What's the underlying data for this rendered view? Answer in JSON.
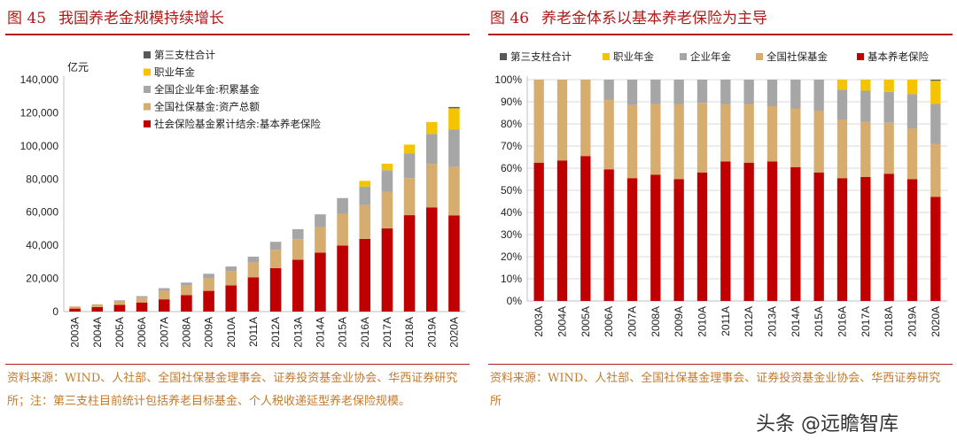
{
  "colors": {
    "basic": "#c00000",
    "social": "#d6ad6f",
    "enterprise": "#a6a6a6",
    "occupational": "#f5c400",
    "third": "#595959",
    "title": "#b01a17",
    "source": "#c47a2e"
  },
  "left": {
    "fig_num": "图 45",
    "title": "我国养老金规模持续增长",
    "source_text": "资料来源：WIND、人社部、全国社保基金理事会、证券投资基金业协会、华西证券研究所；注：第三支柱目前统计包括养老目标基金、个人税收递延型养老保险规模。"
  },
  "right": {
    "fig_num": "图 46",
    "title": "养老金体系以基本养老保险为主导",
    "source_text": "资料来源：WIND、人社部、全国社保基金理事会、证券投资基金业协会、华西证券研究所"
  },
  "watermark": "头条 @远瞻智库",
  "chart_data": [
    {
      "type": "bar",
      "stacked": true,
      "title": "我国养老金规模持续增长",
      "ylabel": "亿元",
      "ylim": [
        0,
        140000
      ],
      "yticks": [
        "0",
        "20,000",
        "40,000",
        "60,000",
        "80,000",
        "100,000",
        "120,000",
        "140,000"
      ],
      "legend_position": "top-left",
      "categories": [
        "2003A",
        "2004A",
        "2005A",
        "2006A",
        "2007A",
        "2008A",
        "2009A",
        "2010A",
        "2011A",
        "2012A",
        "2013A",
        "2014A",
        "2015A",
        "2016A",
        "2017A",
        "2018A",
        "2019A",
        "2020A"
      ],
      "series": [
        {
          "name": "社会保险基金累计结余:基本养老保险",
          "color": "#c00000",
          "values": [
            1800,
            2700,
            4000,
            5500,
            7400,
            9900,
            12500,
            15800,
            20700,
            26200,
            31300,
            35600,
            39900,
            43900,
            50200,
            58200,
            62900,
            58100
          ]
        },
        {
          "name": "全国社保基金:资产总额",
          "color": "#d6ad6f",
          "values": [
            1300,
            1700,
            2100,
            2900,
            5200,
            5700,
            7800,
            8600,
            8900,
            11100,
            12400,
            15400,
            19100,
            20400,
            22200,
            22400,
            26300,
            29200
          ]
        },
        {
          "name": "全国企业年金:积累基金",
          "color": "#a6a6a6",
          "values": [
            0,
            0,
            680,
            910,
            1520,
            1910,
            2530,
            2810,
            3570,
            4820,
            6040,
            7690,
            9530,
            11100,
            12900,
            14800,
            18000,
            22500
          ]
        },
        {
          "name": "职业年金",
          "color": "#f5c400",
          "values": [
            0,
            0,
            0,
            0,
            0,
            0,
            0,
            0,
            0,
            0,
            0,
            0,
            0,
            3500,
            4000,
            5400,
            7200,
            12900
          ]
        },
        {
          "name": "第三支柱合计",
          "color": "#595959",
          "values": [
            0,
            0,
            0,
            0,
            0,
            0,
            0,
            0,
            0,
            0,
            0,
            0,
            0,
            0,
            0,
            0,
            0,
            800
          ]
        }
      ],
      "legend_order": [
        "第三支柱合计",
        "职业年金",
        "全国企业年金:积累基金",
        "全国社保基金:资产总额",
        "社会保险基金累计结余:基本养老保险"
      ]
    },
    {
      "type": "bar",
      "stacked": true,
      "percent": true,
      "title": "养老金体系以基本养老保险为主导",
      "ylim": [
        0,
        100
      ],
      "yticks": [
        "0%",
        "10%",
        "20%",
        "30%",
        "40%",
        "50%",
        "60%",
        "70%",
        "80%",
        "90%",
        "100%"
      ],
      "legend_position": "top",
      "categories": [
        "2003A",
        "2004A",
        "2005A",
        "2006A",
        "2007A",
        "2008A",
        "2009A",
        "2010A",
        "2011A",
        "2012A",
        "2013A",
        "2014A",
        "2015A",
        "2016A",
        "2017A",
        "2018A",
        "2019A",
        "2020A"
      ],
      "series": [
        {
          "name": "基本养老保险",
          "color": "#c00000",
          "values": [
            62.5,
            63.5,
            65.5,
            59.5,
            55.5,
            57,
            55,
            58,
            63,
            62.5,
            63,
            60.5,
            58,
            55.5,
            56,
            57.5,
            55,
            47
          ]
        },
        {
          "name": "全国社保基金",
          "color": "#d6ad6f",
          "values": [
            37.5,
            36.5,
            34.5,
            31.5,
            33,
            32,
            34,
            31.5,
            26,
            26.5,
            25,
            26.5,
            28,
            26.5,
            25,
            23,
            23,
            24
          ]
        },
        {
          "name": "企业年金",
          "color": "#a6a6a6",
          "values": [
            0,
            0,
            0,
            9,
            11.5,
            11,
            11,
            10.5,
            11,
            11,
            12,
            13,
            14,
            13.5,
            14,
            14,
            15.5,
            18
          ]
        },
        {
          "name": "职业年金",
          "color": "#f5c400",
          "values": [
            0,
            0,
            0,
            0,
            0,
            0,
            0,
            0,
            0,
            0,
            0,
            0,
            0,
            4.5,
            5,
            5.5,
            6.5,
            10.5
          ]
        },
        {
          "name": "第三支柱合计",
          "color": "#595959",
          "values": [
            0,
            0,
            0,
            0,
            0,
            0,
            0,
            0,
            0,
            0,
            0,
            0,
            0,
            0,
            0,
            0,
            0,
            0.5
          ]
        }
      ],
      "legend_order": [
        "第三支柱合计",
        "职业年金",
        "企业年金",
        "全国社保基金",
        "基本养老保险"
      ]
    }
  ]
}
